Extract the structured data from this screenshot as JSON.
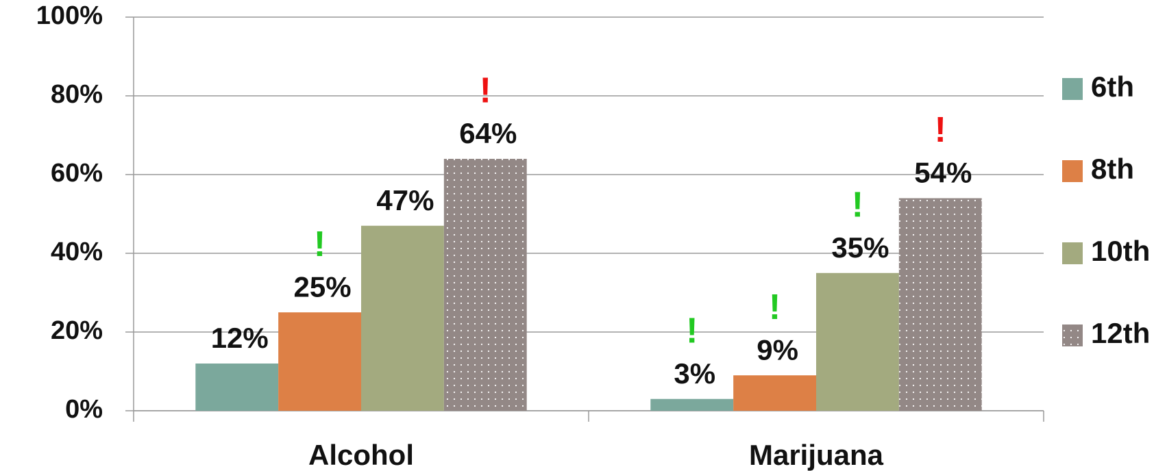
{
  "chart_data": {
    "type": "bar",
    "categories": [
      "Alcohol",
      "Marijuana"
    ],
    "series": [
      {
        "name": "6th",
        "color": "#7ba89c",
        "values": [
          12,
          3
        ],
        "value_labels": [
          "12%",
          "3%"
        ]
      },
      {
        "name": "8th",
        "color": "#dd8046",
        "values": [
          25,
          9
        ],
        "value_labels": [
          "25%",
          "9%"
        ]
      },
      {
        "name": "10th",
        "color": "#a3aa7f",
        "values": [
          47,
          35
        ],
        "value_labels": [
          "47%",
          "35%"
        ]
      },
      {
        "name": "12th",
        "color": "#938886",
        "pattern": "dots",
        "values": [
          64,
          54
        ],
        "value_labels": [
          "64%",
          "54%"
        ]
      }
    ],
    "ylim": [
      0,
      100
    ],
    "yticks": [
      {
        "value": 0,
        "label": "0%"
      },
      {
        "value": 20,
        "label": "20%"
      },
      {
        "value": 40,
        "label": "40%"
      },
      {
        "value": 60,
        "label": "60%"
      },
      {
        "value": 80,
        "label": "80%"
      },
      {
        "value": 100,
        "label": "100%"
      }
    ],
    "grid": true,
    "legend": "right",
    "annotations": [
      {
        "text": "!",
        "color": "#22c922",
        "category": "Alcohol",
        "series": "8th"
      },
      {
        "text": "!",
        "color": "#ee1111",
        "category": "Alcohol",
        "series": "12th"
      },
      {
        "text": "!",
        "color": "#22c922",
        "category": "Marijuana",
        "series": "6th"
      },
      {
        "text": "!",
        "color": "#22c922",
        "category": "Marijuana",
        "series": "8th"
      },
      {
        "text": "!",
        "color": "#22c922",
        "category": "Marijuana",
        "series": "10th"
      },
      {
        "text": "!",
        "color": "#ee1111",
        "category": "Marijuana",
        "series": "12th"
      }
    ]
  }
}
